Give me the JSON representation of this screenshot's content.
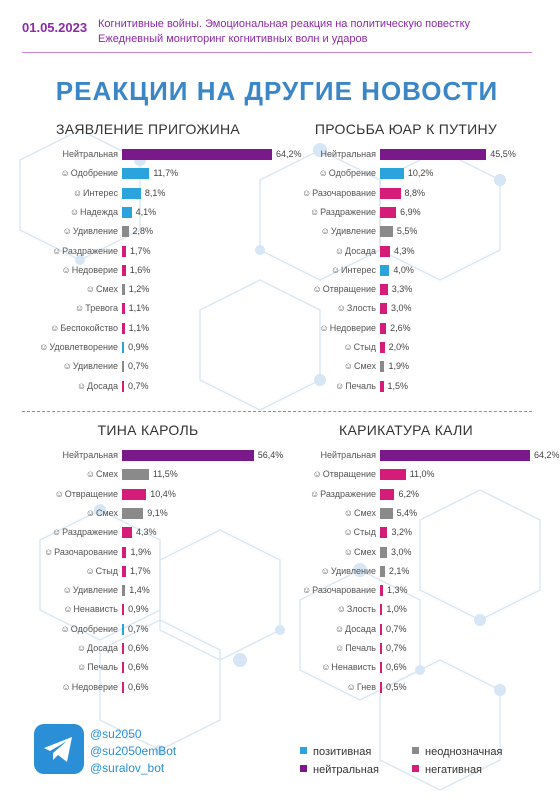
{
  "header": {
    "date": "01.05.2023",
    "line1": "Когнитивные войны. Эмоциональная реакция на политическую повестку",
    "line2": "Ежедневный мониторинг когнитивных волн и ударов"
  },
  "main_title": "РЕАКЦИИ НА ДРУГИЕ НОВОСТИ",
  "colors": {
    "positive": "#2ba3dc",
    "ambiguous": "#8a8a8a",
    "neutral": "#7a1a8a",
    "negative": "#d41c78"
  },
  "chart_data": [
    {
      "type": "bar",
      "title": "ЗАЯВЛЕНИЕ ПРИГОЖИНА",
      "categories": [
        "Нейтральная",
        "Одобрение",
        "Интерес",
        "Надежда",
        "Удивление",
        "Раздражение",
        "Недоверие",
        "Смех",
        "Тревога",
        "Беспокойство",
        "Удовлетворение",
        "Удивление",
        "Досада"
      ],
      "values": [
        64.2,
        11.7,
        8.1,
        4.1,
        2.8,
        1.7,
        1.6,
        1.2,
        1.1,
        1.1,
        0.9,
        0.7,
        0.7
      ],
      "labels": [
        "64,2%",
        "11,7%",
        "8,1%",
        "4,1%",
        "2,8%",
        "1,7%",
        "1,6%",
        "1,2%",
        "1,1%",
        "1,1%",
        "0,9%",
        "0,7%",
        "0,7%"
      ],
      "kinds": [
        "neutral",
        "positive",
        "positive",
        "positive",
        "ambiguous",
        "negative",
        "negative",
        "ambiguous",
        "negative",
        "negative",
        "positive",
        "ambiguous",
        "negative"
      ],
      "icons": [
        "",
        "heart-face-icon",
        "mask-face-icon",
        "sprout-icon",
        "surprised-face-icon",
        "annoyed-face-icon",
        "doubtful-face-icon",
        "laughing-face-icon",
        "worried-face-icon",
        "anxious-face-icon",
        "satisfied-face-icon",
        "amazed-face-icon",
        "frustrated-face-icon"
      ]
    },
    {
      "type": "bar",
      "title": "ПРОСЬБА ЮАР К ПУТИНУ",
      "categories": [
        "Нейтральная",
        "Одобрение",
        "Разочарование",
        "Раздражение",
        "Удивление",
        "Досада",
        "Интерес",
        "Отвращение",
        "Злость",
        "Недоверие",
        "Стыд",
        "Смех",
        "Печаль"
      ],
      "values": [
        45.5,
        10.2,
        8.8,
        6.9,
        5.5,
        4.3,
        4.0,
        3.3,
        3.0,
        2.6,
        2.0,
        1.9,
        1.5
      ],
      "labels": [
        "45,5%",
        "10,2%",
        "8,8%",
        "6,9%",
        "5,5%",
        "4,3%",
        "4,0%",
        "3,3%",
        "3,0%",
        "2,6%",
        "2,0%",
        "1,9%",
        "1,5%"
      ],
      "kinds": [
        "neutral",
        "positive",
        "negative",
        "negative",
        "ambiguous",
        "negative",
        "positive",
        "negative",
        "negative",
        "negative",
        "negative",
        "ambiguous",
        "negative"
      ],
      "icons": [
        "",
        "heart-face-icon",
        "disappointed-face-icon",
        "annoyed-face-icon",
        "surprised-face-icon",
        "frustrated-face-icon",
        "mask-face-icon",
        "disgusted-face-icon",
        "angry-face-icon",
        "doubtful-face-icon",
        "ashamed-face-icon",
        "laughing-face-icon",
        "sad-face-icon"
      ]
    },
    {
      "type": "bar",
      "title": "ТИНА КАРОЛЬ",
      "categories": [
        "Нейтральная",
        "Смех",
        "Отвращение",
        "Смех",
        "Раздражение",
        "Разочарование",
        "Стыд",
        "Удивление",
        "Ненависть",
        "Одобрение",
        "Досада",
        "Печаль",
        "Недоверие"
      ],
      "values": [
        56.4,
        11.5,
        10.4,
        9.1,
        4.3,
        1.9,
        1.7,
        1.4,
        0.9,
        0.7,
        0.6,
        0.6,
        0.6
      ],
      "labels": [
        "56,4%",
        "11,5%",
        "10,4%",
        "9,1%",
        "4,3%",
        "1,9%",
        "1,7%",
        "1,4%",
        "0,9%",
        "0,7%",
        "0,6%",
        "0,6%",
        "0,6%"
      ],
      "kinds": [
        "neutral",
        "ambiguous",
        "negative",
        "ambiguous",
        "negative",
        "negative",
        "negative",
        "ambiguous",
        "negative",
        "positive",
        "negative",
        "negative",
        "negative"
      ],
      "icons": [
        "",
        "cat-face-icon",
        "disgusted-face-icon",
        "laughing-face-icon",
        "annoyed-face-icon",
        "disappointed-face-icon",
        "ashamed-face-icon",
        "amazed-face-icon",
        "hateful-face-icon",
        "heart-face-icon",
        "frustrated-face-icon",
        "sad-face-icon",
        "doubtful-face-icon"
      ]
    },
    {
      "type": "bar",
      "title": "КАРИКАТУРА КАЛИ",
      "categories": [
        "Нейтральная",
        "Отвращение",
        "Раздражение",
        "Смех",
        "Стыд",
        "Смех",
        "Удивление",
        "Разочарование",
        "Злость",
        "Досада",
        "Печаль",
        "Ненависть",
        "Гнев"
      ],
      "values": [
        64.2,
        11.0,
        6.2,
        5.4,
        3.2,
        3.0,
        2.1,
        1.3,
        1.0,
        0.7,
        0.7,
        0.6,
        0.5
      ],
      "labels": [
        "64,2%",
        "11,0%",
        "6,2%",
        "5,4%",
        "3,2%",
        "3,0%",
        "2,1%",
        "1,3%",
        "1,0%",
        "0,7%",
        "0,7%",
        "0,6%",
        "0,5%"
      ],
      "kinds": [
        "neutral",
        "negative",
        "negative",
        "ambiguous",
        "negative",
        "ambiguous",
        "ambiguous",
        "negative",
        "negative",
        "negative",
        "negative",
        "negative",
        "negative"
      ],
      "icons": [
        "",
        "disgusted-face-icon",
        "annoyed-face-icon",
        "cat-face-icon",
        "ashamed-face-icon",
        "laughing-face-icon",
        "amazed-face-icon",
        "disappointed-face-icon",
        "angry-face-icon",
        "frustrated-face-icon",
        "sad-face-icon",
        "hateful-face-icon",
        "furious-face-icon"
      ]
    }
  ],
  "footer": {
    "handles": [
      "@su2050",
      "@su2050emBot",
      "@suralov_bot"
    ],
    "telegram_icon": "telegram-icon"
  },
  "legend": [
    {
      "kind": "positive",
      "label": "позитивная"
    },
    {
      "kind": "ambiguous",
      "label": "неоднозначная"
    },
    {
      "kind": "neutral",
      "label": "нейтральная"
    },
    {
      "kind": "negative",
      "label": "негативная"
    }
  ]
}
